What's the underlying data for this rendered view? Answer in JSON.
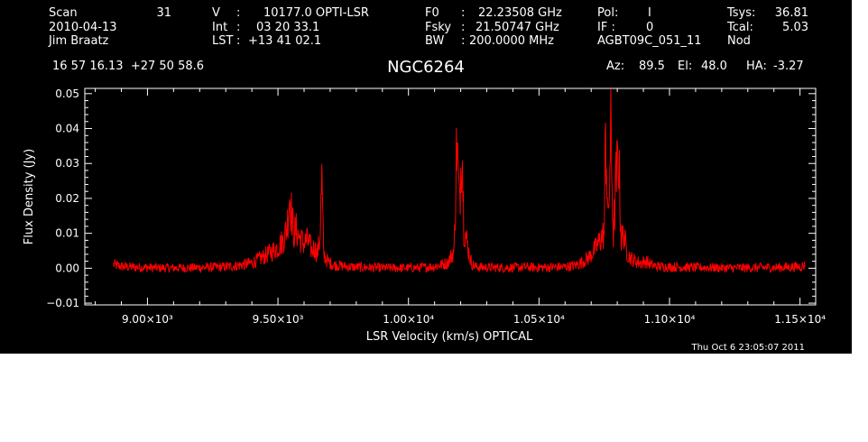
{
  "header": {
    "scan_label": "Scan",
    "scan_value": "31",
    "date": "2010-04-13",
    "observer": "Jim Braatz",
    "v_label": "V",
    "v_value": "10177.0 OPTI-LSR",
    "int_label": "Int",
    "int_value": "03 20 33.1",
    "lst_label": "LST",
    "lst_value": "+13 41 02.1",
    "f0_label": "F0",
    "f0_value": "22.23508 GHz",
    "fsky_label": "Fsky",
    "fsky_value": "21.50747 GHz",
    "bw_label": "BW",
    "bw_value": "200.0000 MHz",
    "pol_label": "Pol:",
    "pol_value": "I",
    "if_label": "IF :",
    "if_value": "0",
    "project": "AGBT09C_051_11",
    "tsys_label": "Tsys:",
    "tsys_value": "36.81",
    "tcal_label": "Tcal:",
    "tcal_value": "5.03",
    "mode": "Nod",
    "coords": "16 57 16.13  +27 50 58.6",
    "az_label": "Az:",
    "az_value": "89.5",
    "el_label": "El:",
    "el_value": "48.0",
    "ha_label": "HA:",
    "ha_value": "-3.27",
    "timestamp": "Thu Oct  6 23:05:07 2011"
  },
  "chart_data": {
    "type": "line",
    "title": "NGC6264",
    "xlabel": "LSR Velocity (km/s) OPTICAL",
    "ylabel": "Flux Density (Jy)",
    "xlim": [
      8760,
      11560
    ],
    "ylim": [
      -0.0105,
      0.0515
    ],
    "x_ticks": [
      {
        "value": 9000,
        "label": "9.00×10³"
      },
      {
        "value": 9500,
        "label": "9.50×10³"
      },
      {
        "value": 10000,
        "label": "1.00×10⁴"
      },
      {
        "value": 10500,
        "label": "1.05×10⁴"
      },
      {
        "value": 11000,
        "label": "1.10×10⁴"
      },
      {
        "value": 11500,
        "label": "1.15×10⁴"
      }
    ],
    "y_ticks": [
      {
        "value": -0.01,
        "label": "−0.01"
      },
      {
        "value": 0.0,
        "label": "0.00"
      },
      {
        "value": 0.01,
        "label": "0.01"
      },
      {
        "value": 0.02,
        "label": "0.02"
      },
      {
        "value": 0.03,
        "label": "0.03"
      },
      {
        "value": 0.04,
        "label": "0.04"
      },
      {
        "value": 0.05,
        "label": "0.05"
      }
    ],
    "line_color": "#ff0000",
    "background": "#000000",
    "axis_color": "#ffffff",
    "series": [
      {
        "x": [
          8870,
          8900,
          8950,
          9000,
          9050,
          9100,
          9150,
          9200,
          9250,
          9300,
          9350,
          9400,
          9450,
          9480,
          9500,
          9520,
          9535,
          9545,
          9560,
          9570,
          9580,
          9590,
          9600,
          9610,
          9620,
          9630,
          9640,
          9650,
          9660,
          9668,
          9675,
          9690,
          9710,
          9730,
          9760,
          9780,
          9800,
          9850,
          9900,
          9950,
          10000,
          10050,
          10100,
          10150,
          10175,
          10185,
          10195,
          10205,
          10212,
          10220,
          10228,
          10235,
          10245,
          10260,
          10280,
          10300,
          10350,
          10400,
          10450,
          10500,
          10550,
          10600,
          10640,
          10660,
          10690,
          10720,
          10740,
          10750,
          10755,
          10765,
          10775,
          10785,
          10795,
          10805,
          10815,
          10825,
          10835,
          10850,
          10870,
          10890,
          10910,
          10930,
          10950,
          11000,
          11050,
          11100,
          11150,
          11200,
          11250,
          11300,
          11350,
          11400,
          11450,
          11500,
          11520
        ],
        "y": [
          0.001,
          0.0005,
          0.0003,
          0.0002,
          0.0001,
          0.0001,
          0.0001,
          0.0002,
          0.0003,
          0.0004,
          0.0008,
          0.0015,
          0.0035,
          0.005,
          0.006,
          0.008,
          0.012,
          0.021,
          0.01,
          0.011,
          0.009,
          0.008,
          0.007,
          0.008,
          0.007,
          0.005,
          0.006,
          0.004,
          0.008,
          0.025,
          0.004,
          0.002,
          0.001,
          0.0008,
          0.0005,
          0.0004,
          0.0003,
          0.0002,
          0.0001,
          0.0001,
          0.0001,
          0.0002,
          0.0005,
          0.0015,
          0.005,
          0.037,
          0.018,
          0.038,
          0.012,
          0.009,
          0.006,
          0.003,
          0.001,
          0.0004,
          0.0003,
          0.0002,
          0.0002,
          0.0002,
          0.0003,
          0.0002,
          0.0003,
          0.0004,
          0.0008,
          0.0015,
          0.003,
          0.006,
          0.009,
          0.01,
          0.04,
          0.012,
          0.038,
          0.009,
          0.025,
          0.033,
          0.008,
          0.01,
          0.005,
          0.003,
          0.002,
          0.0015,
          0.002,
          0.001,
          0.0005,
          0.0004,
          0.0003,
          0.0002,
          0.0002,
          0.0001,
          0.0001,
          0.0001,
          0.0002,
          0.0002,
          0.0003,
          0.0005,
          0.0008
        ]
      }
    ]
  }
}
